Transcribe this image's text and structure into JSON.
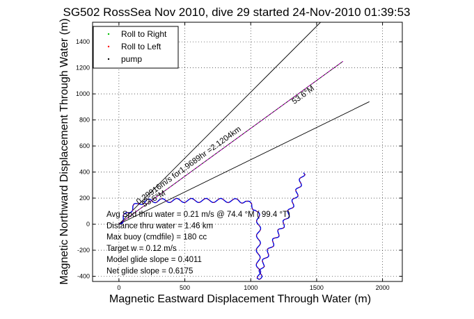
{
  "chart_data": {
    "type": "line",
    "title": "SG502 RossSea Nov 2010, dive 29 started 24-Nov-2010 01:39:53",
    "xlabel": "Magnetic Eastward Displacement Through Water (m)",
    "ylabel": "Magnetic Northward Displacement Through Water (m)",
    "xlim": [
      -200,
      2150
    ],
    "ylim": [
      -440,
      1550
    ],
    "xticks": [
      0,
      500,
      1000,
      1500,
      2000
    ],
    "xtick_labels": [
      "0",
      "500",
      "1000",
      "1500",
      "2000"
    ],
    "yticks": [
      -400,
      -200,
      0,
      200,
      400,
      600,
      800,
      1000,
      1200,
      1400
    ],
    "ytick_labels": [
      "-400",
      "-200",
      "0",
      "200",
      "400",
      "600",
      "800",
      "1000",
      "1200",
      "1400"
    ],
    "grid": true,
    "legend_position": "top-left",
    "legend": [
      {
        "label": "Roll to Right",
        "color": "#00c000"
      },
      {
        "label": "Roll to Left",
        "color": "#ff0000"
      },
      {
        "label": "pump",
        "color": "#000000"
      }
    ],
    "reference_lines": [
      {
        "name": "heading line upper",
        "x": [
          0,
          1530
        ],
        "y": [
          0,
          1550
        ],
        "color": "#000000"
      },
      {
        "name": "course line",
        "x": [
          0,
          1700
        ],
        "y": [
          0,
          1250
        ],
        "color": "#000000",
        "dashed_color": "#c000c0"
      },
      {
        "name": "heading line lower",
        "x": [
          0,
          1900
        ],
        "y": [
          0,
          940
        ],
        "color": "#000000"
      }
    ],
    "annotations": [
      {
        "text": "0.29916m/s for1.9689hr =2.1204km",
        "x": 150,
        "y": 150,
        "angle_deg": 36
      },
      {
        "text": "53.6°M",
        "x": 1330,
        "y": 920,
        "angle_deg": 36
      },
      {
        "text": "53.6°M",
        "x": 190,
        "y": 130,
        "angle_deg": 30
      }
    ],
    "stats": [
      "Avg Spd thru water =  0.21 m/s @  74.4   °M ( 99.4 °T)",
      "Distance thru water =  1.46 km",
      "Max buoy (cmdfile) = 180 cc",
      "Target w = 0.12 m/s",
      "Model glide slope = 0.4011",
      "Net glide slope = 0.6175"
    ],
    "series": [
      {
        "color": "#0000dd",
        "x": [
          0,
          60,
          120,
          180,
          240,
          300,
          400,
          500,
          600,
          700,
          800,
          900,
          960,
          1000,
          1040,
          1060,
          1060,
          1058,
          1056,
          1058,
          1062,
          1065
        ],
        "y": [
          0,
          80,
          140,
          170,
          180,
          180,
          182,
          182,
          182,
          182,
          182,
          180,
          175,
          150,
          110,
          50,
          -50,
          -150,
          -250,
          -330,
          -400,
          -425
        ],
        "wiggle": 10
      },
      {
        "color": "#0000dd",
        "x": [
          1065,
          1070,
          1090,
          1130,
          1170,
          1210,
          1260,
          1300,
          1340,
          1380,
          1400
        ],
        "y": [
          -425,
          -400,
          -310,
          -220,
          -140,
          -70,
          20,
          110,
          210,
          330,
          395
        ],
        "wiggle": 8
      }
    ]
  }
}
